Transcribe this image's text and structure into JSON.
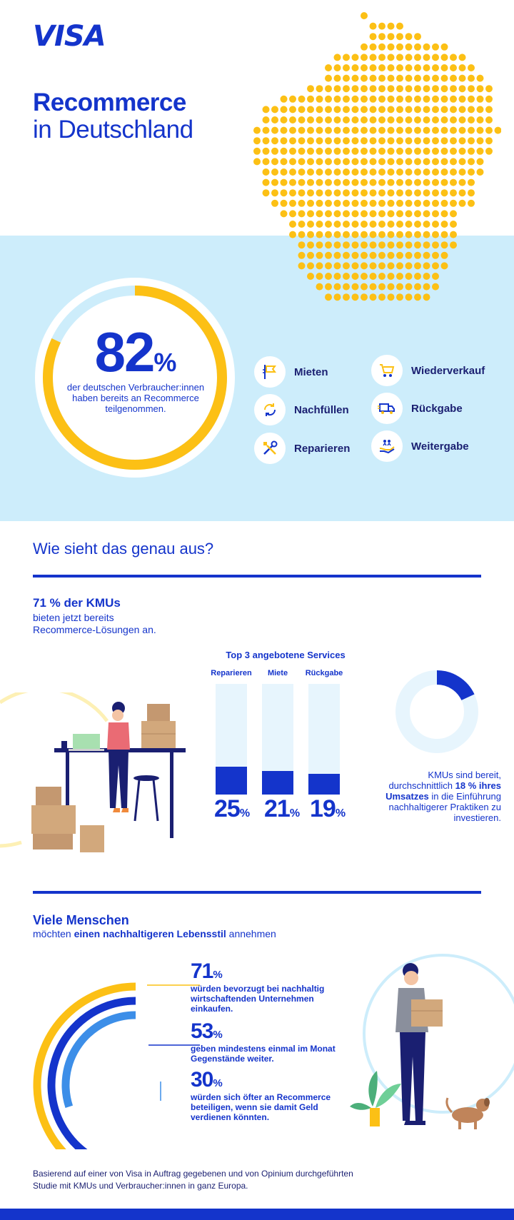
{
  "brand": {
    "logo": "VISA",
    "primary": "#1434cb",
    "navy": "#1a1f71",
    "yellow": "#fcc015",
    "light_blue": "#cdedfb"
  },
  "header": {
    "title_bold": "Recommerce",
    "title_regular": "in Deutschland"
  },
  "hero": {
    "percent_number": "82",
    "percent_sign": "%",
    "percent_value": 82,
    "description": "der deutschen Verbraucher:innen haben bereits an Recommerce teilgenommen."
  },
  "services": [
    {
      "label": "Mieten",
      "icon": "flag-icon"
    },
    {
      "label": "Wiederverkauf",
      "icon": "cart-icon"
    },
    {
      "label": "Nachfüllen",
      "icon": "refill-icon"
    },
    {
      "label": "Rückgabe",
      "icon": "truck-icon"
    },
    {
      "label": "Reparieren",
      "icon": "tools-icon"
    },
    {
      "label": "Weitergabe",
      "icon": "hand-share-icon"
    }
  ],
  "section1": {
    "heading": "Wie sieht das genau aus?",
    "kmu_bold": "71 % der KMUs",
    "kmu_line1": "bieten jetzt bereits",
    "kmu_line2": "Recommerce-Lösungen an.",
    "top3_title": "Top 3 angebotene Services",
    "donut_text_1": "KMUs sind bereit, durchschnittlich",
    "donut_bold": "18 % ihres Umsatzes",
    "donut_text_2": "in die Einführung nachhaltigerer Praktiken zu investieren."
  },
  "chart_data": [
    {
      "type": "bar",
      "title": "Top 3 angebotene Services",
      "categories": [
        "Reparieren",
        "Miete",
        "Rückgabe"
      ],
      "values": [
        25,
        21,
        19
      ],
      "value_labels": [
        "25",
        "21",
        "19"
      ],
      "unit": "%",
      "ylim": [
        0,
        100
      ]
    },
    {
      "type": "pie",
      "label": "18 % ihres Umsatzes",
      "values": [
        18,
        82
      ]
    }
  ],
  "section2": {
    "heading_bold": "Viele Menschen",
    "heading_pre": "möchten",
    "heading_strong": "einen nachhaltigeren Lebensstil",
    "heading_post": "annehmen",
    "stats": [
      {
        "number": "71",
        "sign": "%",
        "value": 71,
        "text": "würden bevorzugt bei nachhaltig wirtschaftenden Unternehmen einkaufen."
      },
      {
        "number": "53",
        "sign": "%",
        "value": 53,
        "text": "geben mindestens einmal im Monat Gegenstände weiter."
      },
      {
        "number": "30",
        "sign": "%",
        "value": 30,
        "text": "würden sich öfter an Recommerce beteiligen, wenn sie damit Geld verdienen könnten."
      }
    ]
  },
  "footer": {
    "line1": "Basierend auf einer von Visa in Auftrag gegebenen und von Opinium durchgeführten",
    "line2": "Studie mit KMUs und Verbraucher:innen in ganz Europa."
  }
}
